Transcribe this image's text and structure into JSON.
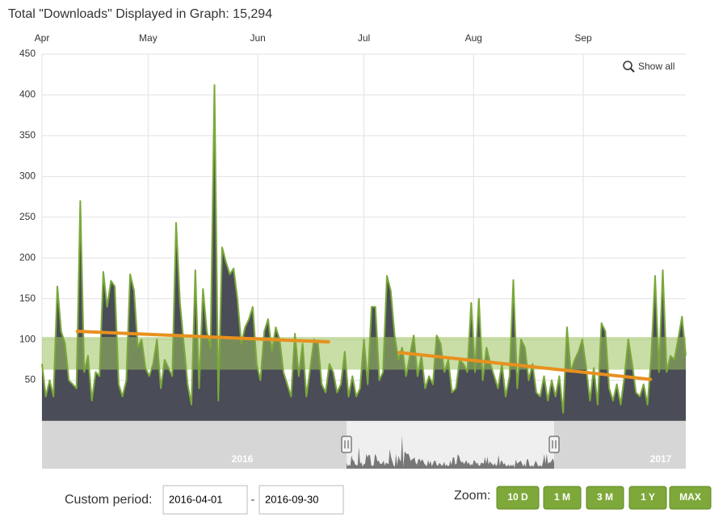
{
  "chart_data": {
    "type": "area",
    "title": "Total \"Downloads\" Displayed in Graph: 15,294",
    "show_all": "Show all",
    "xlim": [
      "2016-04-01",
      "2016-09-30"
    ],
    "xticks": [
      {
        "value": "2016-04-01",
        "label": "Apr"
      },
      {
        "value": "2016-05-01",
        "label": "May"
      },
      {
        "value": "2016-06-01",
        "label": "Jun"
      },
      {
        "value": "2016-07-01",
        "label": "Jul"
      },
      {
        "value": "2016-08-01",
        "label": "Aug"
      },
      {
        "value": "2016-09-01",
        "label": "Sep"
      }
    ],
    "ylim": [
      0,
      450
    ],
    "yticks": [
      50,
      100,
      150,
      200,
      250,
      300,
      350,
      400,
      450
    ],
    "grid": true,
    "color": "#7aa83a",
    "fill": "#4a4c57",
    "values": [
      70,
      30,
      50,
      30,
      165,
      110,
      95,
      50,
      45,
      40,
      270,
      60,
      80,
      25,
      60,
      55,
      183,
      140,
      172,
      165,
      45,
      30,
      50,
      180,
      160,
      90,
      100,
      65,
      55,
      70,
      100,
      40,
      75,
      65,
      55,
      243,
      145,
      95,
      45,
      20,
      185,
      40,
      162,
      110,
      90,
      412,
      25,
      213,
      195,
      180,
      187,
      150,
      95,
      115,
      125,
      140,
      70,
      50,
      110,
      125,
      85,
      115,
      100,
      60,
      45,
      30,
      107,
      55,
      95,
      30,
      65,
      100,
      95,
      45,
      35,
      70,
      60,
      35,
      45,
      85,
      30,
      55,
      30,
      40,
      100,
      45,
      140,
      140,
      50,
      60,
      178,
      160,
      105,
      75,
      90,
      55,
      80,
      105,
      55,
      80,
      40,
      55,
      45,
      105,
      95,
      60,
      75,
      35,
      40,
      75,
      70,
      60,
      145,
      60,
      150,
      50,
      90,
      70,
      55,
      40,
      70,
      30,
      55,
      173,
      40,
      100,
      90,
      50,
      70,
      35,
      30,
      55,
      25,
      50,
      30,
      55,
      10,
      115,
      60,
      75,
      85,
      100,
      65,
      25,
      65,
      20,
      120,
      110,
      40,
      25,
      45,
      20,
      55,
      100,
      70,
      35,
      30,
      45,
      20,
      80,
      178,
      60,
      185,
      60,
      80,
      75,
      100,
      128,
      80
    ],
    "band": {
      "range": [
        63,
        103
      ],
      "color": "#9cc15e"
    },
    "trend_lines": [
      {
        "x": [
          "2016-04-11",
          "2016-06-21"
        ],
        "values": [
          110,
          97
        ],
        "color": "#e8901e"
      },
      {
        "x": [
          "2016-07-11",
          "2016-09-20"
        ],
        "values": [
          84,
          51
        ],
        "color": "#e8901e"
      }
    ],
    "navigator": {
      "labels": [
        "2016",
        "2017"
      ]
    },
    "custom_period": {
      "label": "Custom period:",
      "separator": "-"
    },
    "zoom": {
      "label": "Zoom:",
      "buttons": [
        "10 D",
        "1 M",
        "3 M",
        "1 Y",
        "MAX"
      ]
    }
  }
}
